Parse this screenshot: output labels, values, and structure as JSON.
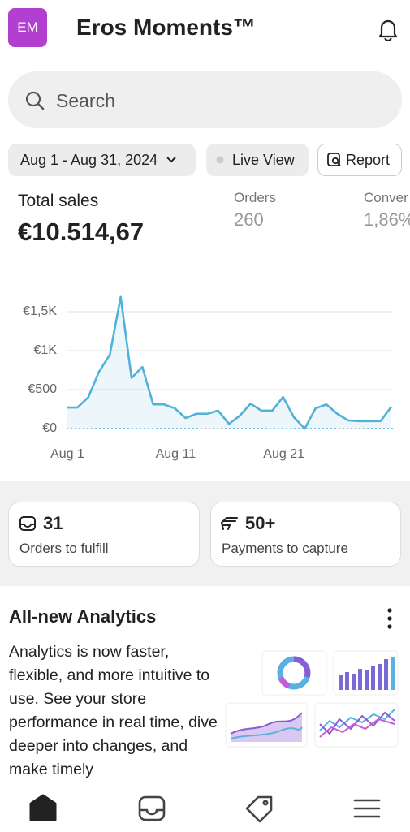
{
  "header": {
    "avatar": "EM",
    "store_name": "Eros Moments™"
  },
  "search": {
    "placeholder": "Search"
  },
  "filters": {
    "date_range": "Aug 1 - Aug 31, 2024",
    "live_view": "Live View",
    "report": "Report"
  },
  "metrics": {
    "total_sales_label": "Total sales",
    "total_sales": "€10.514,67",
    "orders_label": "Orders",
    "orders": "260",
    "conversion_label": "Conver",
    "conversion": "1,86%"
  },
  "chart_data": {
    "type": "line",
    "categories": [
      "Aug 1",
      null,
      null,
      null,
      null,
      null,
      null,
      null,
      null,
      null,
      "Aug 11",
      null,
      null,
      null,
      null,
      null,
      null,
      null,
      null,
      null,
      "Aug 21",
      null,
      null,
      null,
      null,
      null,
      null,
      null,
      null,
      null,
      null
    ],
    "values": [
      270,
      270,
      400,
      730,
      950,
      1690,
      650,
      790,
      310,
      310,
      260,
      135,
      190,
      190,
      230,
      60,
      165,
      320,
      230,
      230,
      405,
      145,
      0,
      260,
      310,
      190,
      105,
      95,
      95,
      95,
      280
    ],
    "color": "#4fb3d9",
    "ylim": [
      0,
      1750
    ],
    "yticks": [
      {
        "value": 0,
        "label": "€0"
      },
      {
        "value": 500,
        "label": "€500"
      },
      {
        "value": 1000,
        "label": "€1K"
      },
      {
        "value": 1500,
        "label": "€1,5K"
      }
    ],
    "grid": true
  },
  "tasks": [
    {
      "count": "31",
      "label": "Orders to fulfill"
    },
    {
      "count": "50+",
      "label": "Payments to capture"
    }
  ],
  "analytics": {
    "title": "All-new Analytics",
    "body": "Analytics is now faster, flexible, and more intuitive to use. See your store performance in real time, dive deeper into changes, and make timely"
  }
}
